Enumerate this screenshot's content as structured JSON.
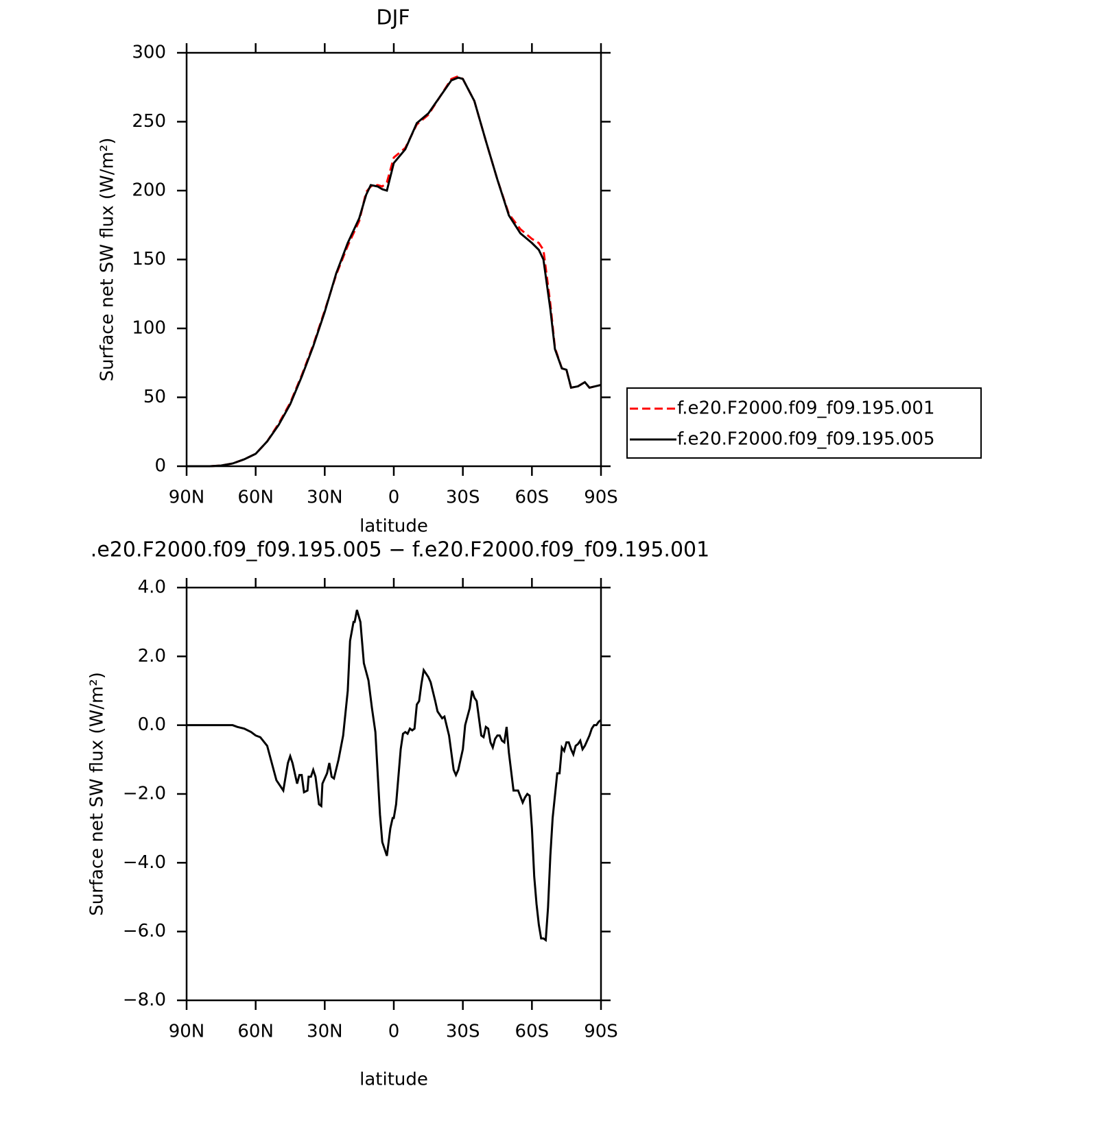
{
  "chart_data": [
    {
      "type": "line",
      "title": "DJF",
      "xlabel": "latitude",
      "ylabel": "Surface net SW flux (W/m²)",
      "x": [
        90,
        85,
        80,
        75,
        70,
        65,
        60,
        55,
        50,
        45,
        40,
        35,
        30,
        25,
        20,
        15,
        12,
        10,
        7,
        5,
        3,
        0,
        -5,
        -10,
        -15,
        -20,
        -25,
        -28,
        -30,
        -35,
        -40,
        -45,
        -50,
        -55,
        -60,
        -63,
        -65,
        -68,
        -70,
        -73,
        -75,
        -77,
        -80,
        -83,
        -85,
        -90
      ],
      "series": [
        {
          "name": "f.e20.F2000.f09_f09.195.001",
          "color": "#ff0000",
          "style": "dashed",
          "values": [
            0,
            0,
            0,
            0.5,
            2,
            5,
            9,
            18,
            31,
            46,
            66,
            88,
            113,
            139,
            160,
            178,
            199,
            203,
            204,
            203,
            206,
            224,
            231,
            248,
            255,
            268,
            281,
            283,
            281,
            265,
            236,
            208,
            183,
            172,
            165,
            162,
            157,
            118,
            86,
            71,
            70,
            57,
            58,
            61,
            57,
            59
          ]
        },
        {
          "name": "f.e20.F2000.f09_f09.195.005",
          "color": "#000000",
          "style": "solid",
          "values": [
            0,
            0,
            0,
            0.5,
            2,
            5,
            9,
            18,
            30,
            45,
            65,
            87,
            112,
            140,
            162,
            180,
            197,
            204,
            203,
            201,
            200,
            220,
            230,
            249,
            256,
            268,
            280,
            282,
            281,
            265,
            236,
            208,
            182,
            169,
            162,
            157,
            150,
            114,
            85,
            71,
            70,
            57,
            58,
            61,
            57,
            59
          ]
        }
      ],
      "xlim": [
        90,
        -90
      ],
      "xticks": [
        {
          "value": 90,
          "label": "90N"
        },
        {
          "value": 60,
          "label": "60N"
        },
        {
          "value": 30,
          "label": "30N"
        },
        0,
        {
          "value": -30,
          "label": "30S"
        },
        {
          "value": -60,
          "label": "60S"
        },
        {
          "value": -90,
          "label": "90S"
        }
      ],
      "ylim": [
        0,
        300
      ],
      "yticks": [
        0,
        50,
        100,
        150,
        200,
        250,
        300
      ],
      "legend": "outside-right"
    },
    {
      "type": "line",
      "title": ".e20.F2000.f09_f09.195.005 − f.e20.F2000.f09_f09.195.001",
      "xlabel": "latitude",
      "ylabel": "Surface net SW flux (W/m²)",
      "x": [
        90,
        75,
        70,
        68,
        65,
        62,
        60,
        58,
        55,
        53,
        51,
        48,
        46,
        45,
        44,
        42,
        41,
        40,
        39,
        37.5,
        37,
        36,
        35,
        34,
        32.5,
        31.5,
        31,
        29,
        28,
        27,
        26,
        24,
        22,
        20,
        19,
        17.5,
        17,
        16,
        14.5,
        13,
        11,
        9.5,
        8,
        7,
        6,
        5,
        3,
        1.5,
        0.5,
        0,
        -1,
        -3,
        -4,
        -5,
        -6,
        -7,
        -8,
        -9,
        -10,
        -11,
        -12,
        -13,
        -15,
        -16,
        -18,
        -19,
        -21,
        -22,
        -24,
        -26,
        -27,
        -28,
        -30,
        -31,
        -33,
        -34,
        -35,
        -36,
        -37,
        -38,
        -39,
        -40,
        -41,
        -42,
        -43,
        -44,
        -45,
        -46,
        -47,
        -48,
        -49,
        -50,
        -52,
        -53,
        -54,
        -56,
        -57,
        -58,
        -59,
        -60,
        -61,
        -62,
        -63,
        -64,
        -65,
        -66,
        -67,
        -68,
        -69,
        -71,
        -72,
        -73,
        -74,
        -75,
        -76,
        -77,
        -78,
        -79,
        -80,
        -81,
        -82,
        -83,
        -84,
        -85,
        -86,
        -87,
        -88,
        -89,
        -90
      ],
      "series": [
        {
          "color": "#000000",
          "style": "solid",
          "values": [
            0,
            0,
            0,
            -0.05,
            -0.1,
            -0.2,
            -0.3,
            -0.35,
            -0.6,
            -1.1,
            -1.6,
            -1.9,
            -1.1,
            -0.9,
            -1.1,
            -1.7,
            -1.45,
            -1.45,
            -1.95,
            -1.9,
            -1.5,
            -1.5,
            -1.3,
            -1.5,
            -2.3,
            -2.35,
            -1.7,
            -1.4,
            -1.1,
            -1.5,
            -1.55,
            -1.0,
            -0.3,
            1.0,
            2.45,
            3.0,
            3.0,
            3.35,
            3.0,
            1.8,
            1.3,
            0.5,
            -0.2,
            -1.4,
            -2.6,
            -3.4,
            -3.8,
            -3.0,
            -2.7,
            -2.7,
            -2.3,
            -0.7,
            -0.25,
            -0.2,
            -0.25,
            -0.1,
            -0.15,
            -0.1,
            0.6,
            0.7,
            1.2,
            1.6,
            1.4,
            1.25,
            0.7,
            0.4,
            0.2,
            0.25,
            -0.3,
            -1.3,
            -1.45,
            -1.3,
            -0.7,
            0,
            0.5,
            1.0,
            0.8,
            0.7,
            0.2,
            -0.3,
            -0.35,
            -0.05,
            -0.1,
            -0.5,
            -0.65,
            -0.4,
            -0.3,
            -0.3,
            -0.45,
            -0.5,
            -0.05,
            -0.8,
            -1.9,
            -1.9,
            -1.9,
            -2.25,
            -2.1,
            -2.0,
            -2.05,
            -3.0,
            -4.4,
            -5.2,
            -5.8,
            -6.2,
            -6.2,
            -6.25,
            -5.3,
            -3.8,
            -2.7,
            -1.4,
            -1.4,
            -0.65,
            -0.75,
            -0.5,
            -0.5,
            -0.7,
            -0.85,
            -0.6,
            -0.55,
            -0.45,
            -0.7,
            -0.6,
            -0.45,
            -0.3,
            -0.1,
            0,
            0,
            0.1,
            0.15
          ]
        }
      ],
      "xlim": [
        90,
        -90
      ],
      "xticks": [
        {
          "value": 90,
          "label": "90N"
        },
        {
          "value": 60,
          "label": "60N"
        },
        {
          "value": 30,
          "label": "30N"
        },
        0,
        {
          "value": -30,
          "label": "30S"
        },
        {
          "value": -60,
          "label": "60S"
        },
        {
          "value": -90,
          "label": "90S"
        }
      ],
      "ylim": [
        -8,
        4
      ],
      "yticks": [
        {
          "value": -8,
          "label": "−8.0"
        },
        {
          "value": -6,
          "label": "−6.0"
        },
        {
          "value": -4,
          "label": "−4.0"
        },
        {
          "value": -2,
          "label": "−2.0"
        },
        {
          "value": 0,
          "label": "0.0"
        },
        {
          "value": 2,
          "label": "2.0"
        },
        {
          "value": 4,
          "label": "4.0"
        }
      ]
    }
  ]
}
